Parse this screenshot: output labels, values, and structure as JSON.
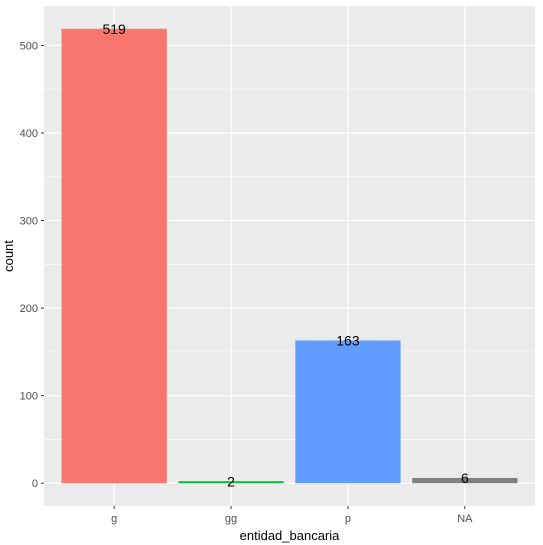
{
  "chart_data": {
    "type": "bar",
    "categories": [
      "g",
      "gg",
      "p",
      "NA"
    ],
    "values": [
      519,
      2,
      163,
      6
    ],
    "data_labels": [
      "519",
      "2",
      "163",
      "6"
    ],
    "colors": [
      "#F8766D",
      "#00BA38",
      "#619CFF",
      "#7F7F7F"
    ],
    "xlabel": "entidad_bancaria",
    "ylabel": "count",
    "ylim": [
      -26,
      545
    ],
    "yticks": [
      0,
      100,
      200,
      300,
      400,
      500
    ],
    "ytick_labels": [
      "0",
      "100",
      "200",
      "300",
      "400",
      "500"
    ],
    "grid": true,
    "legend": "none",
    "panel_background": "#EBEBEB",
    "gridline_color": "#FFFFFF"
  }
}
